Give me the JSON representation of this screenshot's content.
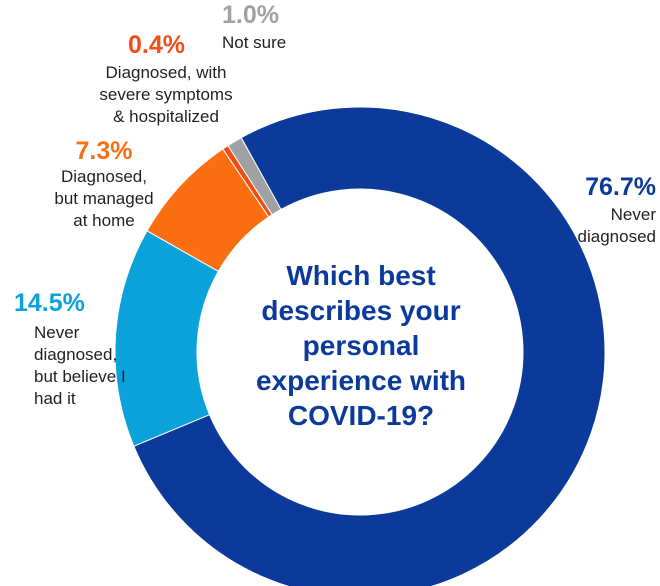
{
  "chart_data": {
    "type": "pie",
    "variant": "donut",
    "title": "Which best describes your personal experience with COVID-19?",
    "slices": [
      {
        "percent_label": "76.7%",
        "value": 76.7,
        "label": "Never\ndiagnosed",
        "color": "#0b3a9b"
      },
      {
        "percent_label": "14.5%",
        "value": 14.5,
        "label": "Never\ndiagnosed,\nbut believe I\nhad it",
        "color": "#0ba2dc"
      },
      {
        "percent_label": "7.3%",
        "value": 7.3,
        "label": "Diagnosed,\nbut managed\nat home",
        "color": "#fb6e12"
      },
      {
        "percent_label": "0.4%",
        "value": 0.4,
        "label": "Diagnosed, with\nsevere symptoms\n& hospitalized",
        "color": "#f24d14"
      },
      {
        "percent_label": "1.0%",
        "value": 1.0,
        "label": "Not sure",
        "color": "#9fa1a4"
      }
    ]
  }
}
